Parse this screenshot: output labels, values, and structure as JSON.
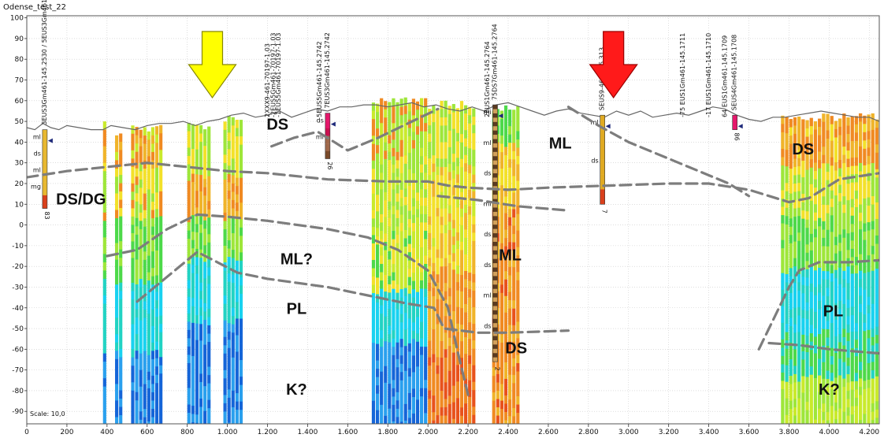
{
  "chart_data": {
    "type": "heatmap",
    "title": "Odense_test_22",
    "scale_label": "Scale: 10,0",
    "xlabel": "",
    "ylabel": "",
    "xlim": [
      0,
      4250
    ],
    "ylim": [
      -96,
      101
    ],
    "x_ticks": [
      "0",
      "200",
      "400",
      "600",
      "800",
      "1.000",
      "1.200",
      "1.400",
      "1.600",
      "1.800",
      "2.000",
      "2.200",
      "2.400",
      "2.600",
      "2.800",
      "3.000",
      "3.200",
      "3.400",
      "3.600",
      "3.800",
      "4.000",
      "4.200"
    ],
    "x_tick_values": [
      0,
      200,
      400,
      600,
      800,
      1000,
      1200,
      1400,
      1600,
      1800,
      2000,
      2200,
      2400,
      2600,
      2800,
      3000,
      3200,
      3400,
      3600,
      3800,
      4000,
      4200
    ],
    "y_ticks": [
      100,
      90,
      80,
      70,
      60,
      50,
      40,
      30,
      20,
      10,
      0,
      -10,
      -20,
      -30,
      -40,
      -50,
      -60,
      -70,
      -80,
      -90
    ],
    "grid": true,
    "terrain": {
      "x": [
        0,
        40,
        80,
        120,
        160,
        200,
        260,
        320,
        380,
        420,
        480,
        540,
        600,
        660,
        720,
        780,
        840,
        900,
        960,
        1020,
        1080,
        1140,
        1200,
        1260,
        1320,
        1380,
        1440,
        1500,
        1560,
        1620,
        1680,
        1740,
        1800,
        1860,
        1920,
        1980,
        2040,
        2100,
        2160,
        2220,
        2280,
        2340,
        2400,
        2460,
        2520,
        2580,
        2640,
        2700,
        2760,
        2820,
        2880,
        2940,
        3000,
        3060,
        3120,
        3180,
        3240,
        3300,
        3360,
        3420,
        3480,
        3540,
        3600,
        3660,
        3720,
        3780,
        3840,
        3900,
        3960,
        4020,
        4080,
        4140,
        4200,
        4250
      ],
      "z": [
        47,
        46,
        49,
        47,
        46,
        48,
        47,
        46,
        46,
        48,
        47,
        46,
        48,
        49,
        49,
        50,
        48,
        50,
        51,
        53,
        54,
        52,
        53,
        55,
        52,
        54,
        56,
        55,
        57,
        57,
        58,
        58,
        57,
        58,
        59,
        57,
        58,
        56,
        55,
        57,
        55,
        58,
        59,
        57,
        55,
        53,
        55,
        56,
        54,
        53,
        52,
        55,
        53,
        55,
        52,
        53,
        54,
        53,
        55,
        57,
        56,
        53,
        51,
        50,
        52,
        52,
        53,
        54,
        55,
        54,
        53,
        52,
        52,
        50
      ]
    },
    "profiles": [
      {
        "x1": 380,
        "x2": 400,
        "top": 50,
        "bottom": -96,
        "palette": "shallowHigh"
      },
      {
        "x1": 440,
        "x2": 480,
        "top": 47,
        "bottom": -96,
        "palette": "shallowHigh"
      },
      {
        "x1": 520,
        "x2": 680,
        "top": 49,
        "bottom": -96,
        "palette": "shallowHigh"
      },
      {
        "x1": 800,
        "x2": 920,
        "top": 50,
        "bottom": -96,
        "palette": "deepLow"
      },
      {
        "x1": 980,
        "x2": 1080,
        "top": 53,
        "bottom": -96,
        "palette": "deepLow"
      },
      {
        "x1": 1720,
        "x2": 2000,
        "top": 62,
        "bottom": -96,
        "palette": "mixed"
      },
      {
        "x1": 2000,
        "x2": 2240,
        "top": 60,
        "bottom": -96,
        "palette": "warmDeep"
      },
      {
        "x1": 2320,
        "x2": 2460,
        "top": 58,
        "bottom": -96,
        "palette": "orangeCol"
      },
      {
        "x1": 3760,
        "x2": 4250,
        "top": 54,
        "bottom": -96,
        "palette": "rightSide"
      }
    ],
    "interpretation_lines": [
      {
        "points": [
          [
            0,
            23
          ],
          [
            200,
            26
          ],
          [
            400,
            28
          ],
          [
            600,
            30
          ],
          [
            800,
            28
          ],
          [
            1000,
            26
          ],
          [
            1200,
            25
          ],
          [
            1500,
            22
          ],
          [
            1800,
            21
          ],
          [
            2000,
            21
          ],
          [
            2100,
            19
          ],
          [
            2200,
            18
          ],
          [
            2400,
            17
          ],
          [
            2600,
            18
          ],
          [
            2900,
            19
          ],
          [
            3200,
            20
          ],
          [
            3400,
            20
          ],
          [
            3600,
            17
          ],
          [
            3800,
            11
          ],
          [
            3900,
            13
          ],
          [
            4050,
            22
          ],
          [
            4250,
            25
          ]
        ]
      },
      {
        "points": [
          [
            400,
            -15
          ],
          [
            550,
            -12
          ],
          [
            700,
            -2
          ],
          [
            850,
            5
          ],
          [
            1000,
            4
          ],
          [
            1200,
            2
          ],
          [
            1500,
            -2
          ],
          [
            1700,
            -6
          ],
          [
            1850,
            -12
          ],
          [
            2000,
            -22
          ],
          [
            2100,
            -40
          ],
          [
            2150,
            -62
          ],
          [
            2200,
            -82
          ]
        ]
      },
      {
        "points": [
          [
            550,
            -37
          ],
          [
            700,
            -25
          ],
          [
            850,
            -13
          ],
          [
            950,
            -18
          ],
          [
            1050,
            -23
          ],
          [
            1200,
            -26
          ],
          [
            1500,
            -30
          ],
          [
            1700,
            -34
          ],
          [
            1900,
            -38
          ],
          [
            2030,
            -40
          ],
          [
            2080,
            -50
          ],
          [
            2250,
            -52
          ],
          [
            2400,
            -52
          ],
          [
            2700,
            -51
          ]
        ]
      },
      {
        "points": [
          [
            1220,
            38
          ],
          [
            1330,
            42
          ],
          [
            1450,
            45
          ],
          [
            1600,
            36
          ],
          [
            1750,
            42
          ],
          [
            1900,
            49
          ],
          [
            2050,
            56
          ]
        ]
      },
      {
        "points": [
          [
            2050,
            14
          ],
          [
            2250,
            12
          ],
          [
            2450,
            9
          ],
          [
            2700,
            7
          ]
        ]
      },
      {
        "points": [
          [
            2700,
            57
          ],
          [
            2850,
            48
          ],
          [
            3000,
            40
          ],
          [
            3200,
            32
          ],
          [
            3350,
            26
          ],
          [
            3500,
            20
          ],
          [
            3600,
            14
          ]
        ]
      },
      {
        "points": [
          [
            3650,
            -60
          ],
          [
            3700,
            -50
          ],
          [
            3750,
            -40
          ],
          [
            3800,
            -30
          ],
          [
            3850,
            -22
          ],
          [
            3950,
            -18
          ],
          [
            4100,
            -18
          ],
          [
            4250,
            -17
          ]
        ]
      },
      {
        "points": [
          [
            3700,
            -57
          ],
          [
            3850,
            -58
          ],
          [
            4000,
            -60
          ],
          [
            4250,
            -62
          ]
        ]
      }
    ],
    "annotations": [
      {
        "text": "DS/DG",
        "x": 270,
        "y": 10
      },
      {
        "text": "DS",
        "x": 1250,
        "y": 46
      },
      {
        "text": "ML",
        "x": 2660,
        "y": 37
      },
      {
        "text": "DS",
        "x": 3870,
        "y": 34
      },
      {
        "text": "ML?",
        "x": 1345,
        "y": -19
      },
      {
        "text": "ML",
        "x": 2410,
        "y": -17
      },
      {
        "text": "PL",
        "x": 1345,
        "y": -43
      },
      {
        "text": "PL",
        "x": 4020,
        "y": -44
      },
      {
        "text": "DS",
        "x": 2440,
        "y": -62
      },
      {
        "text": "K?",
        "x": 1345,
        "y": -82
      },
      {
        "text": "K?",
        "x": 4000,
        "y": -82
      }
    ],
    "arrows": [
      {
        "x": 925,
        "color": "#ffff00",
        "stroke": "#888800"
      },
      {
        "x": 2925,
        "color": "#ff1a1a",
        "stroke": "#990000"
      }
    ],
    "boreholes": [
      {
        "x": 90,
        "top": 46,
        "bottom": 8,
        "label": "3EUS3Gm461-145.2530 / 5EUS3Gm461-145.0020",
        "depth": "83",
        "codes": [
          "ml",
          "ds",
          "ml",
          "mg"
        ]
      },
      {
        "x": 1500,
        "top": 54,
        "bottom": 32,
        "label": "7EUS3Gm461-145.2742",
        "depth": "26",
        "codes": [
          "ds",
          "ml"
        ]
      },
      {
        "x": 2335,
        "top": 58,
        "bottom": -66,
        "label": "75DS7Gm461-145.2764",
        "depth": "2",
        "codes": [
          "mi",
          "ml",
          "ds",
          "ml",
          "ds",
          "ds",
          "ml",
          "ds"
        ]
      },
      {
        "x": 2870,
        "top": 53,
        "bottom": 10,
        "label": "SEUS9-461-145.313",
        "depth": "7",
        "codes": [
          "ml",
          "ds"
        ]
      },
      {
        "x": 3530,
        "top": 53,
        "bottom": 46,
        "label": "SEUS4Gm461-145.1708",
        "depth": "86",
        "codes": []
      }
    ],
    "top_labels": [
      {
        "x": 1210,
        "text": "2XXX9-461-70197-1.03"
      },
      {
        "x": 1240,
        "text": "-2EUS5Gm461-70197-1.03"
      },
      {
        "x": 1265,
        "text": "-1EUS5Gm461-70197-1.03"
      },
      {
        "x": 1470,
        "text": "5EUS5Gm461-145.2742"
      },
      {
        "x": 2305,
        "text": "2EUS1Gm461-145.2764"
      },
      {
        "x": 3280,
        "text": "-75 EUS1Gm461-145.1711"
      },
      {
        "x": 3410,
        "text": "-17 EUS1Gm461-145.1710"
      },
      {
        "x": 3490,
        "text": "64 EUS1Gm461-145.1709"
      }
    ]
  }
}
